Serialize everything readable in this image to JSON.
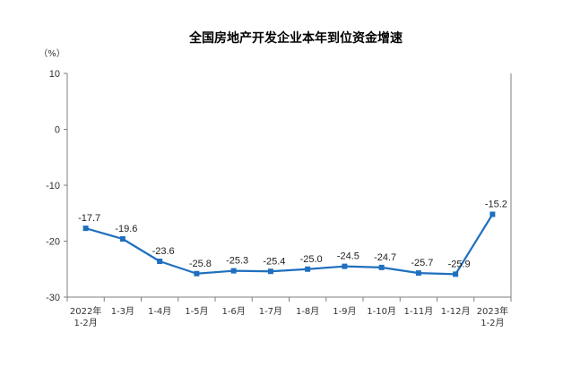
{
  "colors": {
    "line": "#1f6fbf",
    "axis": "#7f7f7f"
  },
  "chart_data": {
    "type": "line",
    "title": "全国房地产开发企业本年到位资金增速",
    "ylabel": "（%）",
    "xlabel": "",
    "ylim": [
      -30,
      10
    ],
    "yticks": [
      10,
      0,
      -10,
      -20,
      -30
    ],
    "grid": false,
    "categories": [
      [
        "2022年",
        "1-2月"
      ],
      [
        "1-3月"
      ],
      [
        "1-4月"
      ],
      [
        "1-5月"
      ],
      [
        "1-6月"
      ],
      [
        "1-7月"
      ],
      [
        "1-8月"
      ],
      [
        "1-9月"
      ],
      [
        "1-10月"
      ],
      [
        "1-11月"
      ],
      [
        "1-12月"
      ],
      [
        "2023年",
        "1-2月"
      ]
    ],
    "series": [
      {
        "values": [
          -17.7,
          -19.6,
          -23.6,
          -25.8,
          -25.3,
          -25.4,
          -25.0,
          -24.5,
          -24.7,
          -25.7,
          -25.9,
          -15.2
        ],
        "labels": [
          "-17.7",
          "-19.6",
          "-23.6",
          "-25.8",
          "-25.3",
          "-25.4",
          "-25.0",
          "-24.5",
          "-24.7",
          "-25.7",
          "-25.9",
          "-15.2"
        ]
      }
    ]
  }
}
